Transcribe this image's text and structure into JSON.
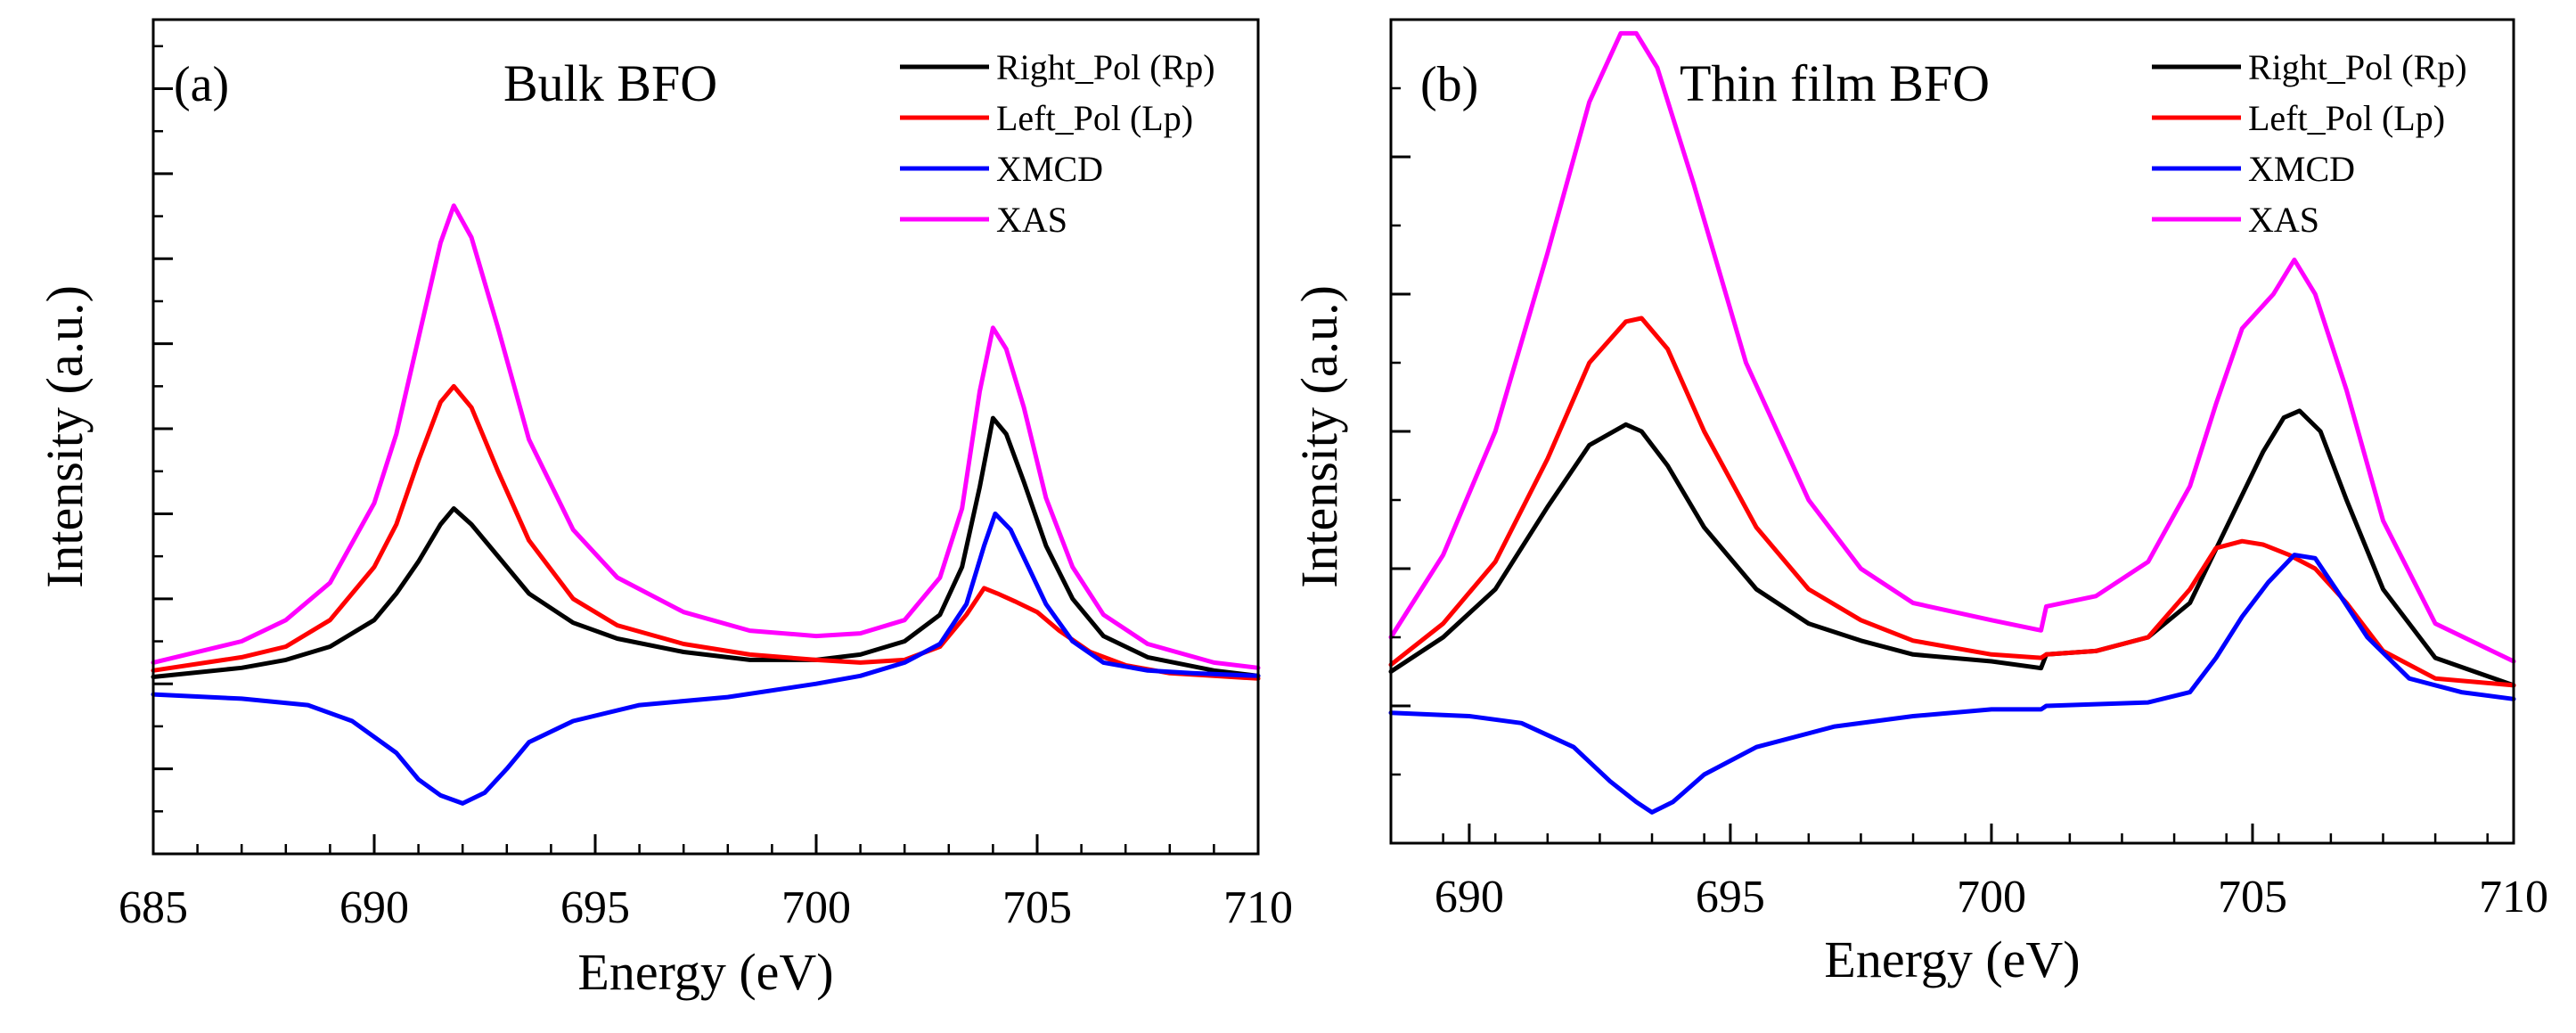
{
  "chart_data": [
    {
      "type": "line",
      "panel_label": "(a)",
      "title": "Bulk BFO",
      "xlabel": "Energy (eV)",
      "ylabel": "Intensity (a.u.)",
      "xlim": [
        685,
        710
      ],
      "ylim": [
        -0.32,
        1.25
      ],
      "xticks": [
        685,
        690,
        695,
        700,
        705,
        710
      ],
      "xtick_labels": [
        "685",
        "690",
        "695",
        "700",
        "705",
        "710"
      ],
      "yticks": [
        -0.32,
        -0.16,
        0.0,
        0.16,
        0.32,
        0.48,
        0.64,
        0.8,
        0.96,
        1.12
      ],
      "legend_position": "top-right",
      "series": [
        {
          "name": "Right_Pol (Rp)",
          "color": "#000000",
          "x": [
            685,
            687,
            688,
            689,
            690,
            690.5,
            691,
            691.5,
            691.8,
            692.2,
            692.8,
            693.5,
            694.5,
            695.5,
            697,
            698.5,
            700,
            701,
            702,
            702.8,
            703.3,
            703.7,
            704,
            704.3,
            704.7,
            705.2,
            705.8,
            706.5,
            707.5,
            709,
            710
          ],
          "y": [
            0.013,
            0.03,
            0.045,
            0.07,
            0.12,
            0.17,
            0.23,
            0.3,
            0.33,
            0.3,
            0.24,
            0.17,
            0.115,
            0.085,
            0.06,
            0.045,
            0.045,
            0.055,
            0.08,
            0.13,
            0.22,
            0.37,
            0.5,
            0.47,
            0.38,
            0.26,
            0.16,
            0.09,
            0.05,
            0.025,
            0.015
          ]
        },
        {
          "name": "Left_Pol (Lp)",
          "color": "#ff0000",
          "x": [
            685,
            687,
            688,
            689,
            690,
            690.5,
            691,
            691.5,
            691.8,
            692.2,
            692.8,
            693.5,
            694.5,
            695.5,
            697,
            698.5,
            700,
            701,
            702,
            702.8,
            703.4,
            703.8,
            704.1,
            704.5,
            705,
            705.5,
            706.2,
            707,
            708,
            709,
            710
          ],
          "y": [
            0.025,
            0.05,
            0.07,
            0.12,
            0.22,
            0.3,
            0.42,
            0.53,
            0.56,
            0.52,
            0.4,
            0.27,
            0.16,
            0.11,
            0.075,
            0.055,
            0.045,
            0.04,
            0.045,
            0.07,
            0.13,
            0.18,
            0.17,
            0.155,
            0.135,
            0.1,
            0.06,
            0.035,
            0.02,
            0.015,
            0.01
          ]
        },
        {
          "name": "XMCD",
          "color": "#0000ff",
          "x": [
            685,
            687,
            688.5,
            689.5,
            690.5,
            691,
            691.5,
            692,
            692.5,
            693,
            693.5,
            694.5,
            696,
            698,
            700,
            701,
            702,
            702.8,
            703.4,
            703.8,
            704.05,
            704.4,
            704.8,
            705.2,
            705.8,
            706.5,
            707.5,
            708.5,
            710
          ],
          "y": [
            -0.02,
            -0.028,
            -0.04,
            -0.07,
            -0.13,
            -0.18,
            -0.21,
            -0.225,
            -0.205,
            -0.16,
            -0.11,
            -0.07,
            -0.04,
            -0.025,
            0.0,
            0.015,
            0.04,
            0.075,
            0.15,
            0.26,
            0.32,
            0.29,
            0.22,
            0.15,
            0.08,
            0.04,
            0.025,
            0.02,
            0.015
          ]
        },
        {
          "name": "XAS",
          "color": "#ff00ff",
          "x": [
            685,
            687,
            688,
            689,
            690,
            690.5,
            691,
            691.5,
            691.8,
            692.2,
            692.8,
            693.5,
            694.5,
            695.5,
            697,
            698.5,
            700,
            701,
            702,
            702.8,
            703.3,
            703.7,
            704,
            704.3,
            704.7,
            705.2,
            705.8,
            706.5,
            707.5,
            709,
            710
          ],
          "y": [
            0.04,
            0.08,
            0.12,
            0.19,
            0.34,
            0.47,
            0.65,
            0.83,
            0.9,
            0.84,
            0.67,
            0.46,
            0.29,
            0.2,
            0.135,
            0.1,
            0.09,
            0.095,
            0.12,
            0.2,
            0.33,
            0.55,
            0.67,
            0.63,
            0.52,
            0.35,
            0.22,
            0.13,
            0.075,
            0.04,
            0.03
          ]
        }
      ]
    },
    {
      "type": "line",
      "panel_label": "(b)",
      "title": "Thin film BFO",
      "xlabel": "Energy (eV)",
      "ylabel": "Intensity (a.u.)",
      "xlim": [
        688.5,
        710
      ],
      "ylim": [
        -0.2,
        1.0
      ],
      "xticks": [
        690,
        695,
        700,
        705,
        710
      ],
      "xtick_labels": [
        "690",
        "695",
        "700",
        "705",
        "710"
      ],
      "yticks": [
        -0.2,
        0.0,
        0.2,
        0.4,
        0.6,
        0.8,
        1.0
      ],
      "legend_position": "top-right",
      "series": [
        {
          "name": "Right_Pol (Rp)",
          "color": "#000000",
          "x": [
            688.5,
            689.5,
            690.5,
            691.5,
            692.3,
            693,
            693.3,
            693.8,
            694.5,
            695.5,
            696.5,
            697.5,
            698.5,
            700,
            700.95,
            701.05,
            702,
            703,
            703.8,
            704.5,
            705.2,
            705.6,
            705.9,
            706.3,
            706.8,
            707.5,
            708.5,
            710
          ],
          "y": [
            0.05,
            0.1,
            0.17,
            0.29,
            0.38,
            0.41,
            0.4,
            0.35,
            0.26,
            0.17,
            0.12,
            0.095,
            0.075,
            0.065,
            0.055,
            0.075,
            0.08,
            0.1,
            0.15,
            0.26,
            0.37,
            0.42,
            0.43,
            0.4,
            0.3,
            0.17,
            0.07,
            0.03
          ]
        },
        {
          "name": "Left_Pol (Lp)",
          "color": "#ff0000",
          "x": [
            688.5,
            689.5,
            690.5,
            691.5,
            692.3,
            693,
            693.3,
            693.8,
            694.5,
            695.5,
            696.5,
            697.5,
            698.5,
            700,
            700.95,
            701.05,
            702,
            703,
            703.8,
            704.3,
            704.8,
            705.2,
            705.7,
            706.2,
            706.8,
            707.5,
            708.5,
            710
          ],
          "y": [
            0.06,
            0.12,
            0.21,
            0.36,
            0.5,
            0.56,
            0.565,
            0.52,
            0.4,
            0.26,
            0.17,
            0.125,
            0.095,
            0.075,
            0.07,
            0.075,
            0.08,
            0.1,
            0.17,
            0.23,
            0.24,
            0.235,
            0.22,
            0.2,
            0.15,
            0.08,
            0.04,
            0.03
          ]
        },
        {
          "name": "XMCD",
          "color": "#0000ff",
          "x": [
            688.5,
            690,
            691,
            692,
            692.7,
            693.2,
            693.5,
            693.9,
            694.5,
            695.5,
            697,
            698.5,
            700,
            700.95,
            701.05,
            703,
            703.8,
            704.3,
            704.8,
            705.3,
            705.8,
            706.2,
            706.6,
            707.2,
            708,
            709,
            710
          ],
          "y": [
            -0.01,
            -0.015,
            -0.025,
            -0.06,
            -0.11,
            -0.14,
            -0.155,
            -0.14,
            -0.1,
            -0.06,
            -0.03,
            -0.015,
            -0.005,
            -0.005,
            0.0,
            0.005,
            0.02,
            0.07,
            0.13,
            0.18,
            0.22,
            0.215,
            0.17,
            0.1,
            0.04,
            0.02,
            0.01
          ]
        },
        {
          "name": "XAS",
          "color": "#ff00ff",
          "x": [
            688.5,
            689.5,
            690.5,
            691.5,
            692.3,
            692.9,
            693.2,
            693.6,
            694.3,
            695.3,
            696.5,
            697.5,
            698.5,
            700,
            700.95,
            701.05,
            702,
            703,
            703.8,
            704.3,
            704.8,
            705.4,
            705.8,
            706.2,
            706.8,
            707.5,
            708.5,
            710
          ],
          "y": [
            0.1,
            0.22,
            0.4,
            0.66,
            0.88,
            0.98,
            0.98,
            0.93,
            0.76,
            0.5,
            0.3,
            0.2,
            0.15,
            0.125,
            0.11,
            0.145,
            0.16,
            0.21,
            0.32,
            0.44,
            0.55,
            0.6,
            0.65,
            0.6,
            0.46,
            0.27,
            0.12,
            0.065
          ]
        }
      ]
    }
  ]
}
